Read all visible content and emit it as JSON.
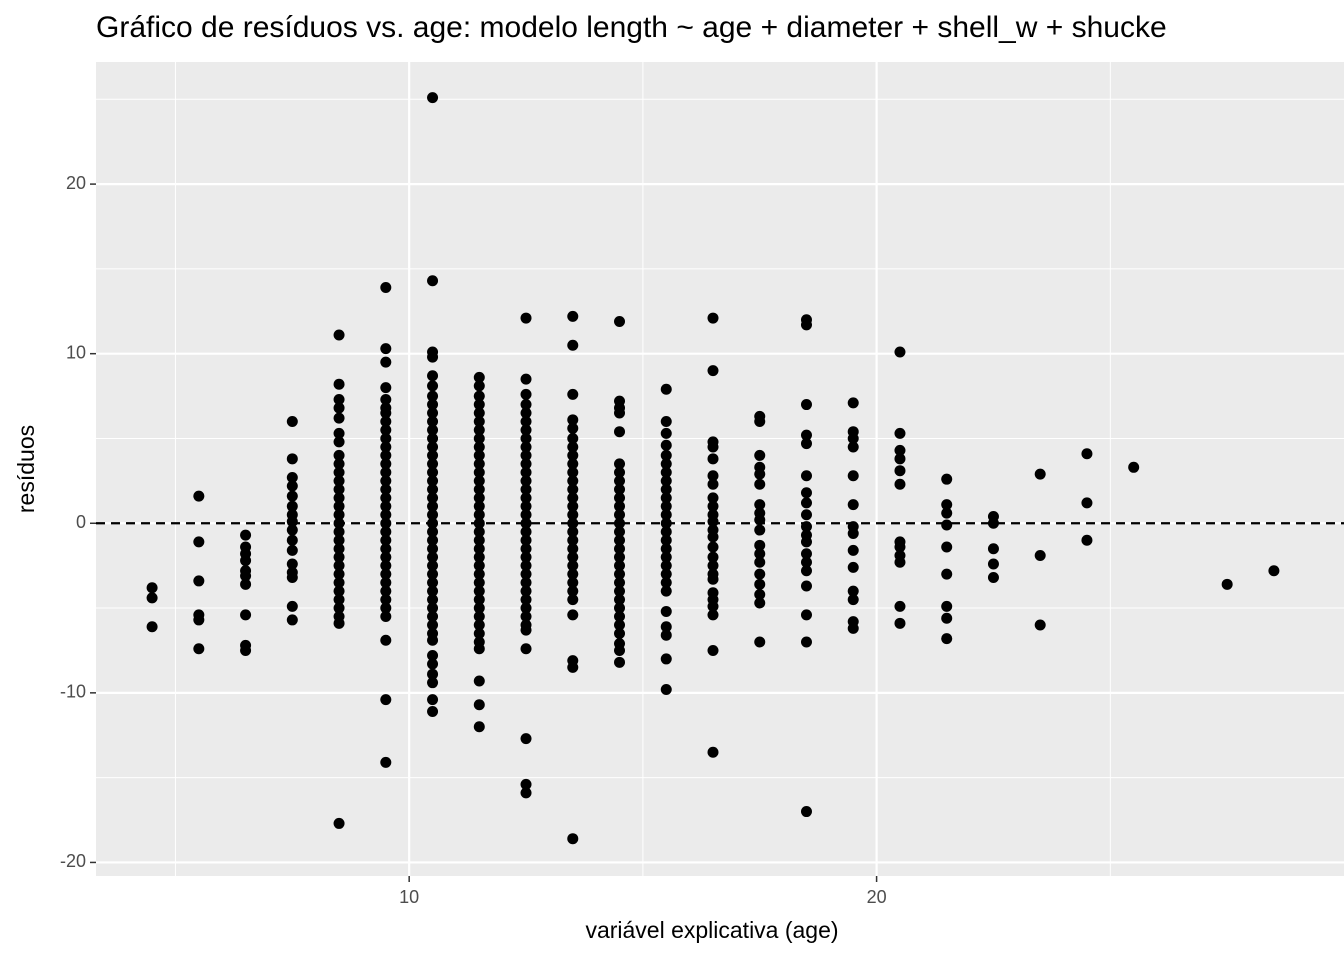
{
  "chart_data": {
    "type": "scatter",
    "title": "Gráfico de resíduos vs. age: modelo length ~ age + diameter + shell_w + shucke",
    "x_label": "variável explicativa (age)",
    "y_label": "resíduos",
    "xlim": [
      3.3,
      29.7
    ],
    "ylim": [
      -20.8,
      27.2
    ],
    "xticks": [
      10,
      20
    ],
    "yticks": [
      -20,
      -10,
      0,
      10,
      20
    ],
    "x_minor_breaks": [
      5,
      15,
      25
    ],
    "y_minor_breaks": [
      -15,
      -5,
      5,
      15,
      25
    ],
    "grid": true,
    "hline": 0,
    "color": "#000000",
    "x": [
      4.5,
      4.5,
      4.5,
      5.5,
      5.5,
      5.5,
      5.5,
      5.5,
      5.5,
      6.5,
      6.5,
      6.5,
      6.5,
      6.5,
      6.5,
      6.5,
      6.5,
      6.5,
      6.5,
      7.5,
      7.5,
      7.5,
      7.5,
      7.5,
      7.5,
      7.5,
      7.5,
      7.5,
      7.5,
      7.5,
      7.5,
      7.5,
      7.5,
      7.5,
      7.5,
      8.5,
      8.5,
      8.5,
      8.5,
      8.5,
      8.5,
      8.5,
      8.5,
      8.5,
      8.5,
      8.5,
      8.5,
      8.5,
      8.5,
      8.5,
      8.5,
      8.5,
      8.5,
      8.5,
      8.5,
      8.5,
      8.5,
      8.5,
      8.5,
      8.5,
      8.5,
      8.5,
      8.5,
      8.5,
      9.5,
      9.5,
      9.5,
      9.5,
      9.5,
      9.5,
      9.5,
      9.5,
      9.5,
      9.5,
      9.5,
      9.5,
      9.5,
      9.5,
      9.5,
      9.5,
      9.5,
      9.5,
      9.5,
      9.5,
      9.5,
      9.5,
      9.5,
      9.5,
      9.5,
      9.5,
      9.5,
      9.5,
      9.5,
      9.5,
      9.5,
      9.5,
      9.5,
      9.5,
      10.5,
      10.5,
      10.5,
      10.5,
      10.5,
      10.5,
      10.5,
      10.5,
      10.5,
      10.5,
      10.5,
      10.5,
      10.5,
      10.5,
      10.5,
      10.5,
      10.5,
      10.5,
      10.5,
      10.5,
      10.5,
      10.5,
      10.5,
      10.5,
      10.5,
      10.5,
      10.5,
      10.5,
      10.5,
      10.5,
      10.5,
      10.5,
      10.5,
      10.5,
      10.5,
      10.5,
      10.5,
      10.5,
      10.5,
      10.5,
      10.5,
      10.5,
      11.5,
      11.5,
      11.5,
      11.5,
      11.5,
      11.5,
      11.5,
      11.5,
      11.5,
      11.5,
      11.5,
      11.5,
      11.5,
      11.5,
      11.5,
      11.5,
      11.5,
      11.5,
      11.5,
      11.5,
      11.5,
      11.5,
      11.5,
      11.5,
      11.5,
      11.5,
      11.5,
      11.5,
      11.5,
      11.5,
      11.5,
      11.5,
      11.5,
      11.5,
      11.5,
      11.5,
      12.5,
      12.5,
      12.5,
      12.5,
      12.5,
      12.5,
      12.5,
      12.5,
      12.5,
      12.5,
      12.5,
      12.5,
      12.5,
      12.5,
      12.5,
      12.5,
      12.5,
      12.5,
      12.5,
      12.5,
      12.5,
      12.5,
      12.5,
      12.5,
      12.5,
      12.5,
      12.5,
      12.5,
      12.5,
      12.5,
      12.5,
      12.5,
      12.5,
      12.5,
      12.5,
      13.5,
      13.5,
      13.5,
      13.5,
      13.5,
      13.5,
      13.5,
      13.5,
      13.5,
      13.5,
      13.5,
      13.5,
      13.5,
      13.5,
      13.5,
      13.5,
      13.5,
      13.5,
      13.5,
      13.5,
      13.5,
      13.5,
      13.5,
      13.5,
      13.5,
      13.5,
      13.5,
      13.5,
      13.5,
      14.5,
      14.5,
      14.5,
      14.5,
      14.5,
      14.5,
      14.5,
      14.5,
      14.5,
      14.5,
      14.5,
      14.5,
      14.5,
      14.5,
      14.5,
      14.5,
      14.5,
      14.5,
      14.5,
      14.5,
      14.5,
      14.5,
      14.5,
      14.5,
      14.5,
      14.5,
      14.5,
      14.5,
      14.5,
      15.5,
      15.5,
      15.5,
      15.5,
      15.5,
      15.5,
      15.5,
      15.5,
      15.5,
      15.5,
      15.5,
      15.5,
      15.5,
      15.5,
      15.5,
      15.5,
      15.5,
      15.5,
      15.5,
      15.5,
      15.5,
      15.5,
      15.5,
      15.5,
      15.5,
      15.5,
      16.5,
      16.5,
      16.5,
      16.5,
      16.5,
      16.5,
      16.5,
      16.5,
      16.5,
      16.5,
      16.5,
      16.5,
      16.5,
      16.5,
      16.5,
      16.5,
      16.5,
      16.5,
      16.5,
      16.5,
      16.5,
      16.5,
      16.5,
      16.5,
      17.5,
      17.5,
      17.5,
      17.5,
      17.5,
      17.5,
      17.5,
      17.5,
      17.5,
      17.5,
      17.5,
      17.5,
      17.5,
      17.5,
      17.5,
      17.5,
      17.5,
      17.5,
      18.5,
      18.5,
      18.5,
      18.5,
      18.5,
      18.5,
      18.5,
      18.5,
      18.5,
      18.5,
      18.5,
      18.5,
      18.5,
      18.5,
      18.5,
      18.5,
      18.5,
      18.5,
      18.5,
      19.5,
      19.5,
      19.5,
      19.5,
      19.5,
      19.5,
      19.5,
      19.5,
      19.5,
      19.5,
      19.5,
      19.5,
      19.5,
      19.5,
      20.5,
      20.5,
      20.5,
      20.5,
      20.5,
      20.5,
      20.5,
      20.5,
      20.5,
      20.5,
      20.5,
      20.5,
      21.5,
      21.5,
      21.5,
      21.5,
      21.5,
      21.5,
      21.5,
      21.5,
      21.5,
      22.5,
      22.5,
      22.5,
      22.5,
      22.5,
      23.5,
      23.5,
      23.5,
      24.5,
      24.5,
      24.5,
      25.5,
      27.5,
      28.5
    ],
    "values": [
      -3.8,
      -4.4,
      -6.1,
      1.6,
      -1.1,
      -3.4,
      -5.4,
      -5.7,
      -7.4,
      -0.7,
      -1.4,
      -1.8,
      -2.2,
      -2.8,
      -3.1,
      -3.6,
      -5.4,
      -7.2,
      -7.5,
      6.0,
      3.8,
      2.7,
      2.2,
      1.6,
      1.0,
      0.5,
      0.1,
      -0.4,
      -1.0,
      -1.6,
      -2.4,
      -2.9,
      -3.2,
      -4.9,
      -5.7,
      11.1,
      8.2,
      7.3,
      6.8,
      6.2,
      5.3,
      4.8,
      4,
      3.5,
      3,
      2.5,
      2,
      1.5,
      1,
      0.5,
      0,
      -0.5,
      -1,
      -1.5,
      -2,
      -2.5,
      -3,
      -3.5,
      -4,
      -4.5,
      -5,
      -5.5,
      -5.9,
      -17.7,
      13.9,
      10.3,
      9.5,
      8,
      7.3,
      6.8,
      6.5,
      6,
      5.5,
      5,
      4.5,
      4,
      3.5,
      3,
      2.5,
      2,
      1.5,
      1,
      0.5,
      0,
      -0.5,
      -1,
      -1.5,
      -2,
      -2.5,
      -3,
      -3.5,
      -4,
      -4.5,
      -5,
      -5.5,
      -6.9,
      -10.4,
      -14.1,
      25.1,
      14.3,
      10.1,
      9.8,
      8.7,
      8.1,
      7.5,
      7,
      6.5,
      6,
      5.5,
      5,
      4.5,
      4,
      3.5,
      3,
      2.5,
      2,
      1.5,
      1,
      0.5,
      0,
      -0.5,
      -1,
      -1.5,
      -2,
      -2.5,
      -3,
      -3.5,
      -4,
      -4.5,
      -5,
      -5.5,
      -6,
      -6.5,
      -6.9,
      -7.8,
      -8.3,
      -8.9,
      -9.4,
      -10.4,
      -11.1,
      8.6,
      8.1,
      7.5,
      7,
      6.5,
      6,
      5.5,
      5,
      4.5,
      4,
      3.5,
      3,
      2.5,
      2,
      1.5,
      1,
      0.5,
      0,
      -0.5,
      -1,
      -1.5,
      -2,
      -2.5,
      -3,
      -3.5,
      -4,
      -4.5,
      -5,
      -5.5,
      -6,
      -6.5,
      -7,
      -7.4,
      -9.3,
      -10.7,
      -12,
      12.1,
      8.5,
      7.6,
      7,
      6.5,
      6,
      5.5,
      5,
      4.5,
      4,
      3.5,
      3,
      2.5,
      2,
      1.5,
      1,
      0.5,
      0,
      -0.5,
      -1,
      -1.5,
      -2,
      -2.5,
      -3,
      -3.5,
      -4,
      -4.5,
      -5,
      -5.5,
      -6,
      -6.3,
      -7.4,
      -12.7,
      -15.4,
      -15.9,
      12.2,
      10.5,
      7.6,
      6.1,
      5.6,
      5,
      4.5,
      4,
      3.5,
      3,
      2.5,
      2,
      1.5,
      1,
      0.5,
      0,
      -0.5,
      -1,
      -1.5,
      -2,
      -2.5,
      -3,
      -3.5,
      -4,
      -4.5,
      -5.4,
      -8.1,
      -8.5,
      -18.6,
      11.9,
      7.2,
      6.8,
      6.5,
      5.4,
      3.5,
      3,
      2.5,
      2,
      1.5,
      1,
      0.5,
      0,
      -0.5,
      -1,
      -1.5,
      -2,
      -2.5,
      -3,
      -3.5,
      -4,
      -4.5,
      -5,
      -5.5,
      -6,
      -6.5,
      -7.1,
      -7.5,
      -8.2,
      7.9,
      6,
      5.3,
      4.6,
      4,
      3.5,
      3,
      2.5,
      2,
      1.5,
      1,
      0.5,
      0,
      -0.5,
      -1,
      -1.5,
      -2,
      -2.5,
      -3,
      -3.5,
      -4,
      -5.2,
      -6.1,
      -6.6,
      -8,
      -9.8,
      12.1,
      9.0,
      4.8,
      4.5,
      3.8,
      2.8,
      2.3,
      1.5,
      1.0,
      0.5,
      0.1,
      -0.4,
      -0.8,
      -1.4,
      -2.0,
      -2.5,
      -3.0,
      -3.3,
      -4.1,
      -4.5,
      -4.9,
      -5.4,
      -7.5,
      -13.5,
      6.3,
      6.0,
      4.0,
      3.3,
      2.9,
      2.3,
      1.1,
      0.6,
      0.2,
      -0.4,
      -1.3,
      -1.8,
      -2.3,
      -3.0,
      -3.6,
      -4.2,
      -4.7,
      -7.0,
      12.0,
      11.7,
      7.0,
      5.2,
      4.7,
      2.8,
      1.8,
      1.2,
      0.5,
      -0.2,
      -0.7,
      -1.1,
      -1.8,
      -2.3,
      -2.8,
      -3.7,
      -5.4,
      -7.0,
      -17.0,
      7.1,
      5.4,
      5.0,
      4.5,
      2.8,
      1.1,
      -0.2,
      -0.6,
      -1.6,
      -2.6,
      -4.0,
      -4.5,
      -5.8,
      -6.2,
      10.1,
      5.3,
      4.3,
      3.8,
      3.1,
      2.3,
      -1.1,
      -1.4,
      -1.9,
      -2.3,
      -4.9,
      -5.9,
      2.6,
      1.1,
      0.6,
      -0.1,
      -1.4,
      -3.0,
      -4.9,
      -5.6,
      -6.8,
      0.4,
      0,
      -1.5,
      -2.4,
      -3.2,
      2.9,
      -1.9,
      -6.0,
      4.1,
      1.2,
      -1.0,
      3.3,
      -3.6,
      -2.8
    ]
  }
}
